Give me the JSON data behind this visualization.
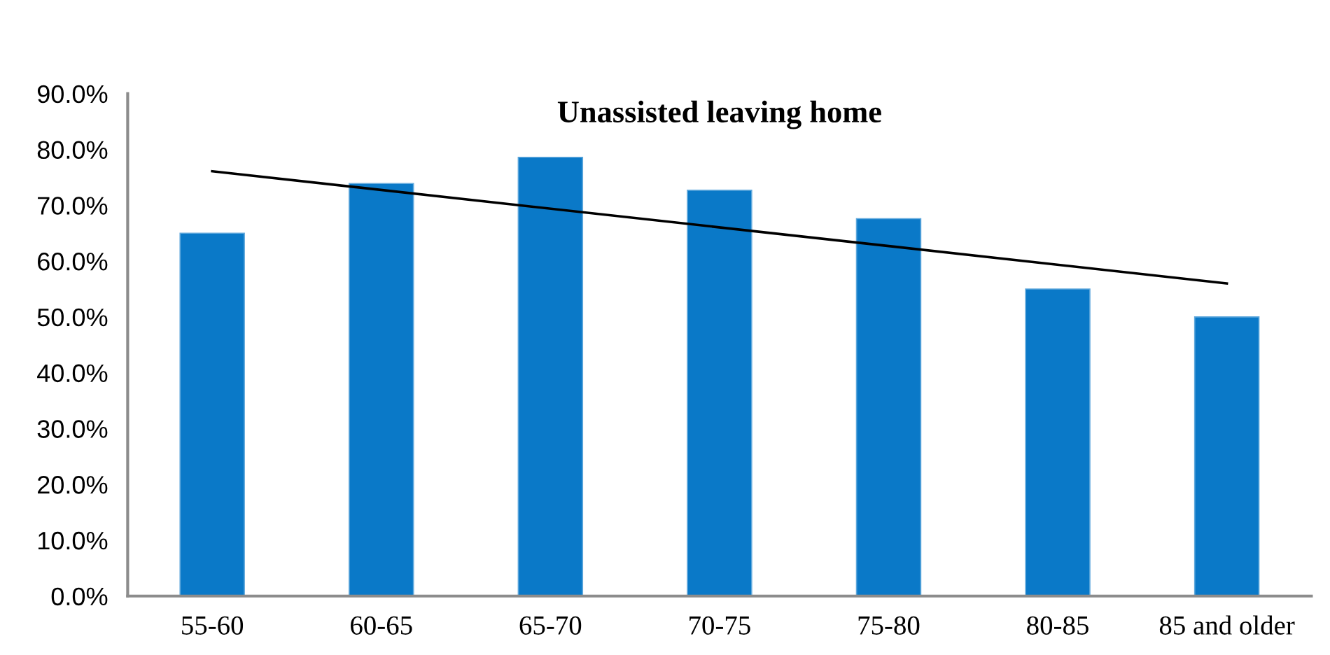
{
  "chart_data": {
    "type": "bar",
    "title": "Unassisted leaving home",
    "categories": [
      "55-60",
      "60-65",
      "65-70",
      "70-75",
      "75-80",
      "80-85",
      "85 and older"
    ],
    "series": [
      {
        "color": "#0a79c8",
        "values": [
          65.0,
          73.9,
          78.6,
          72.7,
          67.6,
          55.0,
          50.0
        ]
      },
      {
        "type": "line",
        "color": "#000000",
        "x": [
          "55-60",
          "85 and older"
        ],
        "values": [
          76.1,
          56.0
        ]
      }
    ],
    "ylim": [
      0,
      90
    ],
    "yticks": [
      {
        "value": 0,
        "label": "0.0%"
      },
      {
        "value": 10,
        "label": "10.0%"
      },
      {
        "value": 20,
        "label": "20.0%"
      },
      {
        "value": 30,
        "label": "30.0%"
      },
      {
        "value": 40,
        "label": "40.0%"
      },
      {
        "value": 50,
        "label": "50.0%"
      },
      {
        "value": 60,
        "label": "60.0%"
      },
      {
        "value": 70,
        "label": "70.0%"
      },
      {
        "value": 80,
        "label": "80.0%"
      },
      {
        "value": 90,
        "label": "90.0%"
      }
    ],
    "grid": false,
    "legend": false
  }
}
